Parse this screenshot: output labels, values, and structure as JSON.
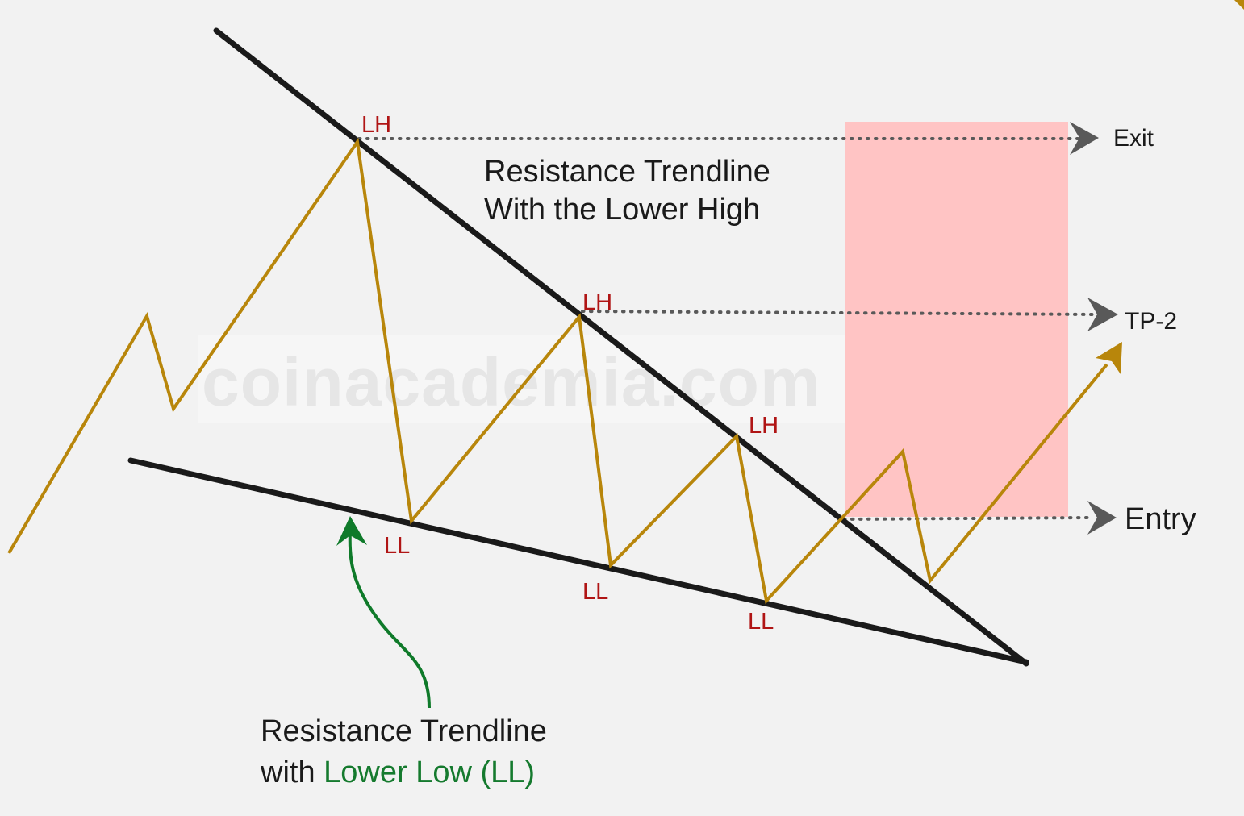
{
  "watermark": "coinacademia.com",
  "pivot_labels": {
    "lh1": "LH",
    "lh2": "LH",
    "lh3": "LH",
    "ll1": "LL",
    "ll2": "LL",
    "ll3": "LL"
  },
  "targets": {
    "exit": "Exit",
    "tp2": "TP-2",
    "entry": "Entry"
  },
  "upper_caption": {
    "line1": "Resistance Trendline",
    "line2": "With the Lower High"
  },
  "lower_caption": {
    "line1": "Resistance Trendline",
    "line2_prefix": "with ",
    "line2_highlight": "Lower Low (LL)"
  },
  "colors": {
    "background": "#f2f2f2",
    "price_path": "#b8860b",
    "trendline": "#1a1a1a",
    "pivot_label": "#b01515",
    "zone": "#ffc4c4",
    "target_arrow": "#595959",
    "green_arrow": "#0f7a2a",
    "green_text": "#157a2e"
  }
}
